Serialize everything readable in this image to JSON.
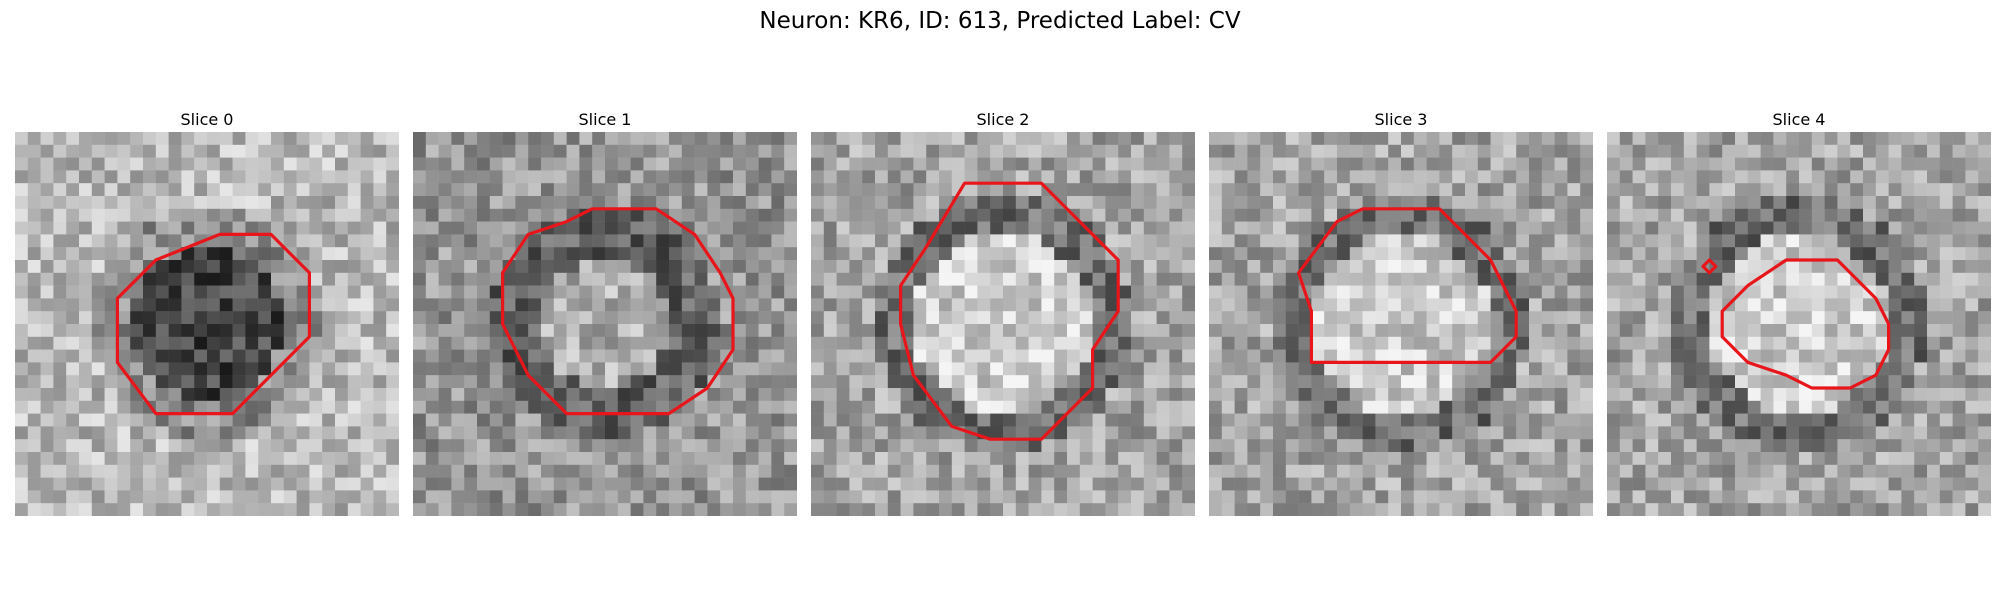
{
  "figure": {
    "title": "Neuron: KR6, ID: 613, Predicted Label: CV"
  },
  "contour_color": "#e8151b",
  "panels": [
    {
      "title": "Slice 0",
      "tone": "dark-center",
      "contour": [
        [
          16,
          8
        ],
        [
          20,
          8
        ],
        [
          23,
          11
        ],
        [
          23,
          16
        ],
        [
          17,
          22
        ],
        [
          11,
          22
        ],
        [
          8,
          18
        ],
        [
          8,
          13
        ],
        [
          11,
          10
        ]
      ],
      "extra": []
    },
    {
      "title": "Slice 1",
      "tone": "ring",
      "contour": [
        [
          12,
          7
        ],
        [
          14,
          6
        ],
        [
          19,
          6
        ],
        [
          22,
          8
        ],
        [
          24,
          11
        ],
        [
          25,
          13
        ],
        [
          25,
          17
        ],
        [
          23,
          20
        ],
        [
          20,
          22
        ],
        [
          16,
          22
        ],
        [
          12,
          22
        ],
        [
          9,
          19
        ],
        [
          7,
          15
        ],
        [
          7,
          11
        ],
        [
          9,
          8
        ]
      ],
      "extra": []
    },
    {
      "title": "Slice 2",
      "tone": "bright-center",
      "contour": [
        [
          12,
          4
        ],
        [
          18,
          4
        ],
        [
          21,
          7
        ],
        [
          24,
          10
        ],
        [
          24,
          14
        ],
        [
          22,
          17
        ],
        [
          22,
          20
        ],
        [
          18,
          24
        ],
        [
          14,
          24
        ],
        [
          11,
          23
        ],
        [
          8,
          19
        ],
        [
          7,
          15
        ],
        [
          7,
          12
        ],
        [
          9,
          9
        ]
      ],
      "extra": []
    },
    {
      "title": "Slice 3",
      "tone": "bright-center",
      "contour": [
        [
          10,
          7
        ],
        [
          12,
          6
        ],
        [
          18,
          6
        ],
        [
          20,
          8
        ],
        [
          22,
          10
        ],
        [
          23,
          12
        ],
        [
          24,
          14
        ],
        [
          24,
          16
        ],
        [
          22,
          18
        ],
        [
          8,
          18
        ],
        [
          8,
          14
        ],
        [
          7,
          11
        ]
      ],
      "extra": []
    },
    {
      "title": "Slice 4",
      "tone": "bright-center",
      "contour": [
        [
          14,
          10
        ],
        [
          18,
          10
        ],
        [
          21,
          13
        ],
        [
          22,
          15
        ],
        [
          22,
          17
        ],
        [
          21,
          19
        ],
        [
          19,
          20
        ],
        [
          16,
          20
        ],
        [
          14,
          19
        ],
        [
          11,
          18
        ],
        [
          9,
          16
        ],
        [
          9,
          15
        ],
        [
          9,
          14
        ],
        [
          11,
          12
        ]
      ],
      "extra": [
        [
          [
            8,
            10
          ],
          [
            8.5,
            10.5
          ],
          [
            8,
            11
          ],
          [
            7.5,
            10.5
          ]
        ]
      ]
    }
  ]
}
